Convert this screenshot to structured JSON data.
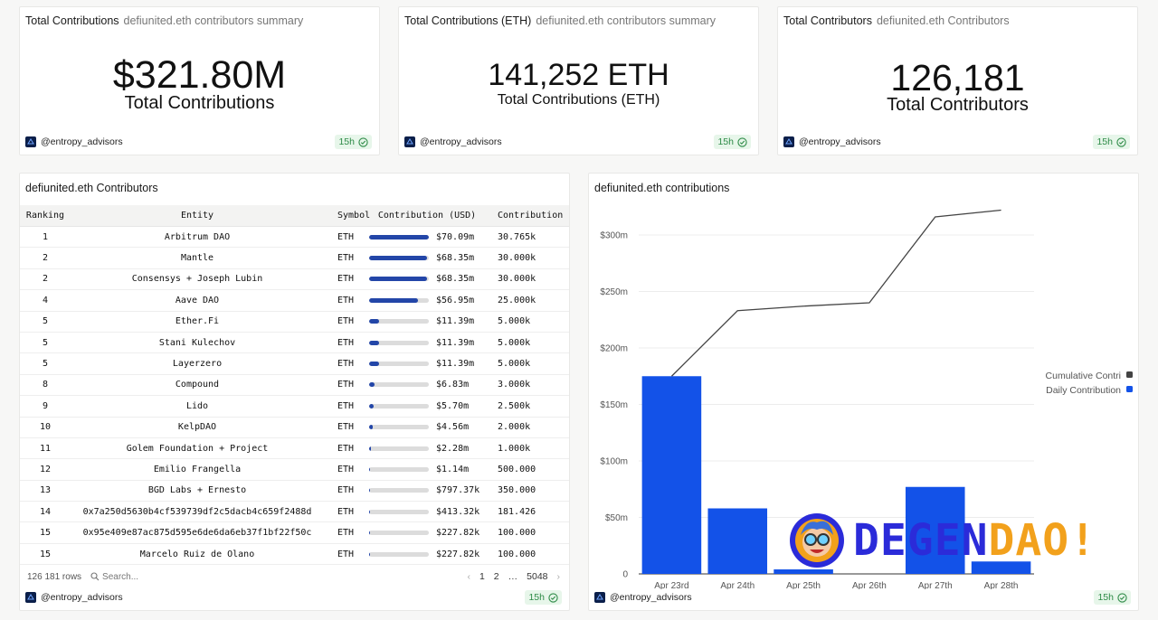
{
  "cards": {
    "total_contributions": {
      "title": "Total Contributions",
      "subtitle": "defiunited.eth contributors summary",
      "value": "$321.80M",
      "label": "Total Contributions",
      "author": "@entropy_advisors",
      "age": "15h"
    },
    "total_contributions_eth": {
      "title": "Total Contributions (ETH)",
      "subtitle": "defiunited.eth contributors summary",
      "value": "141,252 ETH",
      "label": "Total Contributions (ETH)",
      "author": "@entropy_advisors",
      "age": "15h"
    },
    "total_contributors": {
      "title": "Total Contributors",
      "subtitle": "defiunited.eth Contributors",
      "value": "126,181",
      "label": "Total Contributors",
      "author": "@entropy_advisors",
      "age": "15h"
    }
  },
  "table": {
    "title": "defiunited.eth Contributors",
    "columns": [
      "Ranking",
      "Entity",
      "Symbol",
      "Contribution (USD)",
      "Contribution (E"
    ],
    "rows": [
      {
        "rank": "1",
        "entity": "Arbitrum DAO",
        "symbol": "ETH",
        "usd": "$70.09m",
        "eth": "30.765k",
        "share": 1.0
      },
      {
        "rank": "2",
        "entity": "Mantle",
        "symbol": "ETH",
        "usd": "$68.35m",
        "eth": "30.000k",
        "share": 0.975
      },
      {
        "rank": "2",
        "entity": "Consensys + Joseph Lubin",
        "symbol": "ETH",
        "usd": "$68.35m",
        "eth": "30.000k",
        "share": 0.975
      },
      {
        "rank": "4",
        "entity": "Aave DAO",
        "symbol": "ETH",
        "usd": "$56.95m",
        "eth": "25.000k",
        "share": 0.813
      },
      {
        "rank": "5",
        "entity": "Ether.Fi",
        "symbol": "ETH",
        "usd": "$11.39m",
        "eth": "5.000k",
        "share": 0.163
      },
      {
        "rank": "5",
        "entity": "Stani Kulechov",
        "symbol": "ETH",
        "usd": "$11.39m",
        "eth": "5.000k",
        "share": 0.163
      },
      {
        "rank": "5",
        "entity": "Layerzero",
        "symbol": "ETH",
        "usd": "$11.39m",
        "eth": "5.000k",
        "share": 0.163
      },
      {
        "rank": "8",
        "entity": "Compound",
        "symbol": "ETH",
        "usd": "$6.83m",
        "eth": "3.000k",
        "share": 0.097
      },
      {
        "rank": "9",
        "entity": "Lido",
        "symbol": "ETH",
        "usd": "$5.70m",
        "eth": "2.500k",
        "share": 0.081
      },
      {
        "rank": "10",
        "entity": "KelpDAO",
        "symbol": "ETH",
        "usd": "$4.56m",
        "eth": "2.000k",
        "share": 0.065
      },
      {
        "rank": "11",
        "entity": "Golem Foundation + Project",
        "symbol": "ETH",
        "usd": "$2.28m",
        "eth": "1.000k",
        "share": 0.033
      },
      {
        "rank": "12",
        "entity": "Emilio Frangella",
        "symbol": "ETH",
        "usd": "$1.14m",
        "eth": "500.000",
        "share": 0.016
      },
      {
        "rank": "13",
        "entity": "BGD Labs + Ernesto",
        "symbol": "ETH",
        "usd": "$797.37k",
        "eth": "350.000",
        "share": 0.011
      },
      {
        "rank": "14",
        "entity": "0x7a250d5630b4cf539739df2c5dacb4c659f2488d",
        "symbol": "ETH",
        "usd": "$413.32k",
        "eth": "181.426",
        "share": 0.006
      },
      {
        "rank": "15",
        "entity": "0x95e409e87ac875d595e6de6da6eb37f1bf22f50c",
        "symbol": "ETH",
        "usd": "$227.82k",
        "eth": "100.000",
        "share": 0.003
      },
      {
        "rank": "15",
        "entity": "Marcelo Ruiz de Olano",
        "symbol": "ETH",
        "usd": "$227.82k",
        "eth": "100.000",
        "share": 0.003
      }
    ],
    "row_count": "126 181 rows",
    "search_placeholder": "Search...",
    "pagination": {
      "prev": "‹",
      "pages": [
        "1",
        "2"
      ],
      "ellipsis": "…",
      "last": "5048",
      "next": "›"
    },
    "author": "@entropy_advisors",
    "age": "15h"
  },
  "chart_card": {
    "title": "defiunited.eth contributions",
    "author": "@entropy_advisors",
    "age": "15h",
    "watermark": "DEGENDAO!"
  },
  "chart_data": {
    "type": "bar",
    "title": "defiunited.eth contributions",
    "categories": [
      "Apr 23rd",
      "Apr 24th",
      "Apr 25th",
      "Apr 26th",
      "Apr 27th",
      "Apr 28th"
    ],
    "series": [
      {
        "name": "Daily Contribution",
        "type": "bar",
        "color": "#1352e8",
        "values": [
          175,
          58,
          4,
          0,
          77,
          11
        ]
      },
      {
        "name": "Cumulative Contri",
        "type": "line",
        "color": "#444444",
        "values": [
          175,
          233,
          237,
          240,
          316,
          322
        ]
      }
    ],
    "ylim": [
      0,
      320
    ],
    "yticks": [
      0,
      50,
      100,
      150,
      200,
      250,
      300
    ],
    "ytick_labels": [
      "0",
      "$50m",
      "$100m",
      "$150m",
      "$200m",
      "$250m",
      "$300m"
    ],
    "grid": true,
    "legend_position": "right"
  },
  "colors": {
    "bar": "#1352e8",
    "table_bar": "#2346a8",
    "badge_bg": "#e7f6ea",
    "badge_text": "#2e8b47",
    "watermark_a": "#2b2bd9",
    "watermark_b": "#f2a11c"
  }
}
